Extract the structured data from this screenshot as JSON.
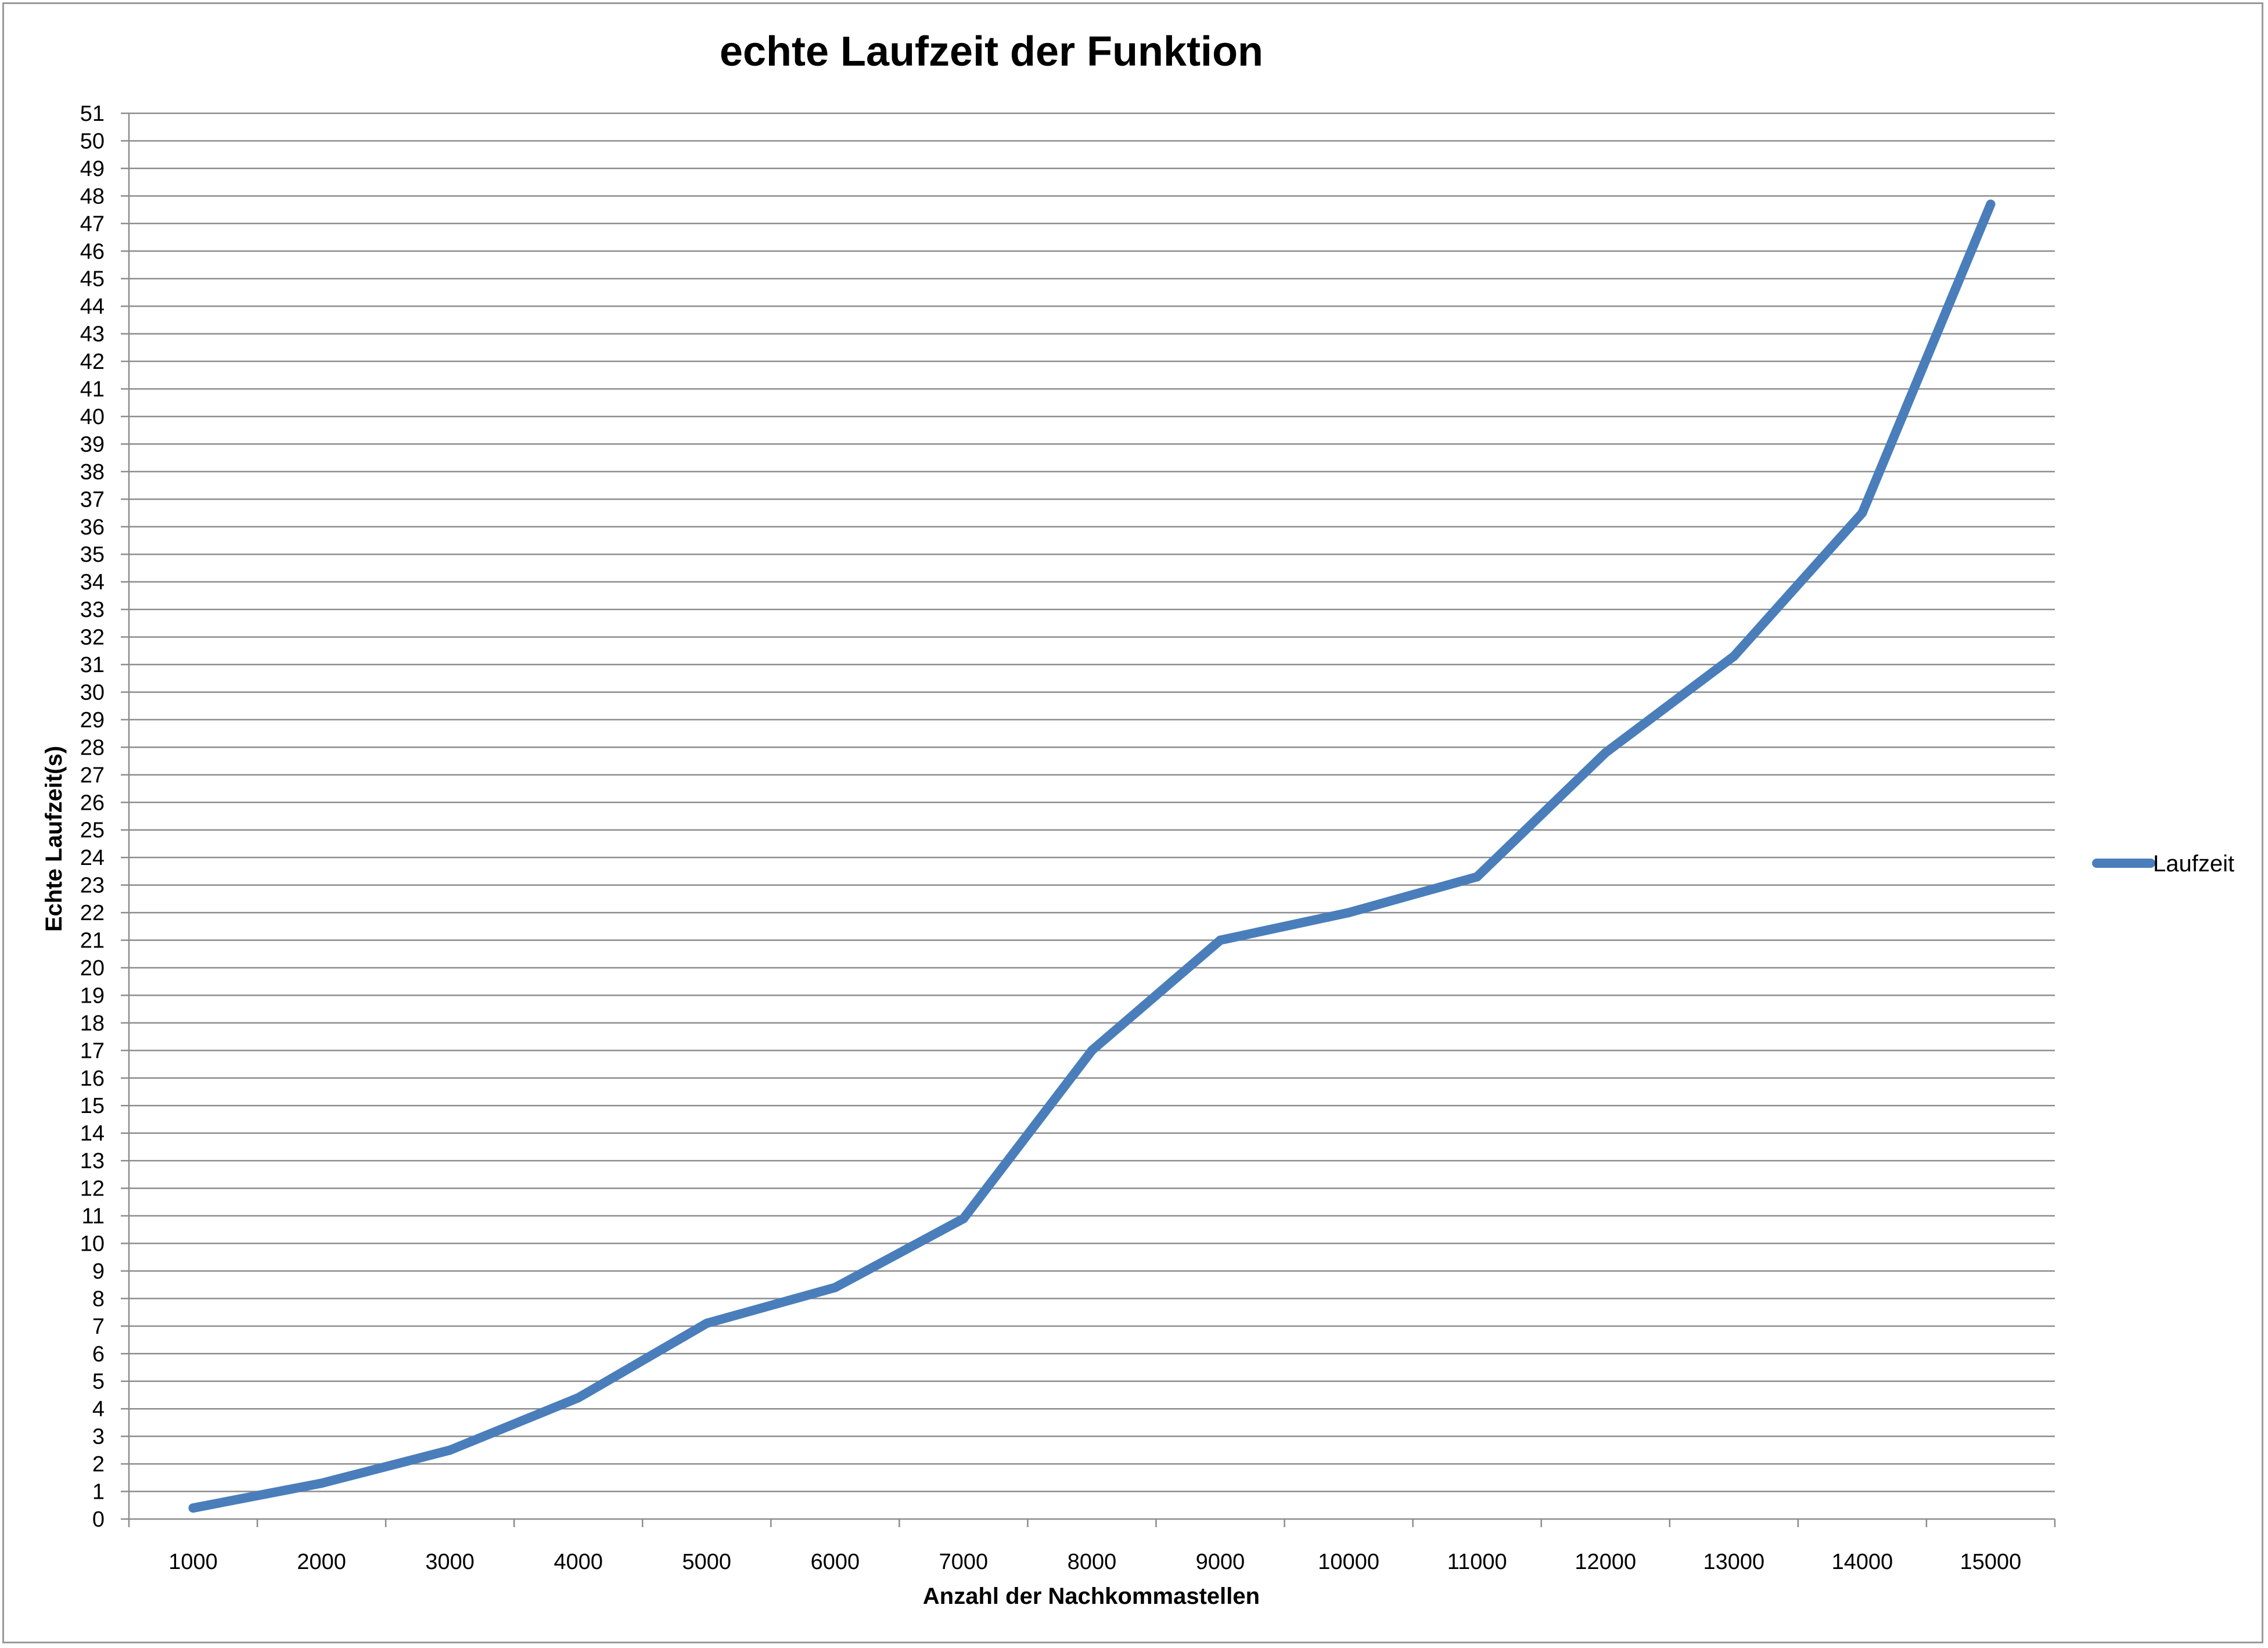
{
  "chart_data": {
    "type": "line",
    "title": "echte Laufzeit der Funktion",
    "xlabel": "Anzahl der Nachkommastellen",
    "ylabel": "Echte Laufzeit(s)",
    "categories": [
      "1000",
      "2000",
      "3000",
      "4000",
      "5000",
      "6000",
      "7000",
      "8000",
      "9000",
      "10000",
      "11000",
      "12000",
      "13000",
      "14000",
      "15000"
    ],
    "series": [
      {
        "name": "Laufzeit",
        "color": "#4a7ebb",
        "values": [
          0.4,
          1.3,
          2.5,
          4.4,
          7.1,
          8.4,
          10.9,
          17.0,
          21.0,
          22.0,
          23.3,
          27.8,
          31.3,
          36.5,
          47.7
        ]
      }
    ],
    "ylim": [
      0,
      51
    ],
    "ytick_step": 1,
    "grid": true,
    "legend_position": "right",
    "colors": {
      "gridline": "#8c8c8c",
      "axis": "#8c8c8c",
      "frame": "#9a9a9a"
    }
  }
}
